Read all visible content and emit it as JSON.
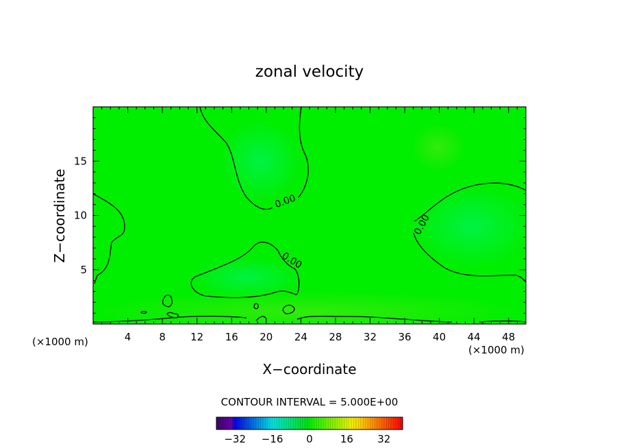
{
  "chart_data": {
    "type": "contour",
    "title": "zonal velocity",
    "xlabel": "X−coordinate",
    "ylabel": "Z−coordinate",
    "x_units": "(×1000 m)",
    "z_units": "(×1000 m)",
    "xlim": [
      0,
      50
    ],
    "ylim": [
      0,
      20
    ],
    "x_ticks": [
      4,
      8,
      12,
      16,
      20,
      24,
      28,
      32,
      36,
      40,
      44,
      48
    ],
    "y_ticks": [
      5,
      10,
      15
    ],
    "contour_labels": [
      "0.00",
      "0.00",
      "0.00"
    ],
    "contour_interval_text": "CONTOUR INTERVAL = 5.000E+00",
    "colorbar": {
      "min": -40,
      "max": 40,
      "ticks": [
        -32,
        -16,
        0,
        16,
        32
      ],
      "tick_labels": [
        "−32",
        "−16",
        "0",
        "16",
        "32"
      ]
    },
    "field_color": "#00ee00",
    "contour_color": "#000000"
  }
}
